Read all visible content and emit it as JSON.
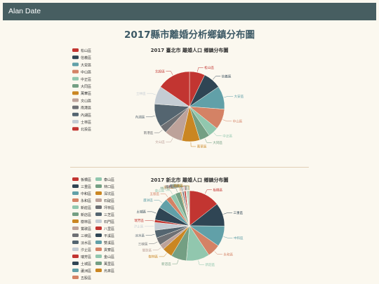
{
  "navbar": {
    "brand": "Alan Date"
  },
  "page": {
    "title": "2017縣市離婚分析鄉鎮分布圖"
  },
  "chart_data": [
    {
      "type": "pie",
      "title": "2017 臺北市 離婚人口 鄉鎮分布圖",
      "categories": [
        "松山區",
        "信義區",
        "大安區",
        "中山區",
        "中正區",
        "大同區",
        "萬華區",
        "文山區",
        "南港區",
        "內湖區",
        "士林區",
        "北投區"
      ],
      "values": [
        6,
        7,
        9,
        8,
        4,
        4,
        7,
        7,
        3,
        9,
        7,
        13
      ],
      "colors": [
        "#c23531",
        "#2f4554",
        "#61a0a8",
        "#d48265",
        "#91c7ae",
        "#749f83",
        "#ca8622",
        "#bda29a",
        "#6e7074",
        "#546570",
        "#c4ccd3",
        "#c23531"
      ],
      "legend": "left"
    },
    {
      "type": "pie",
      "title": "2017 新北市 離婚人口 鄉鎮分布圖",
      "categories": [
        "板橋區",
        "三重區",
        "中和區",
        "永和區",
        "新莊區",
        "新店區",
        "樹林區",
        "鶯歌區",
        "三峽區",
        "淡水區",
        "汐止區",
        "瑞芳區",
        "土城區",
        "蘆洲區",
        "五股區",
        "泰山區",
        "林口區",
        "深坑區",
        "石碇區",
        "坪林區",
        "三芝區",
        "石門區",
        "八里區",
        "平溪區",
        "雙溪區",
        "貢寮區",
        "金山區",
        "萬里區",
        "烏來區"
      ],
      "values": [
        12,
        9,
        8,
        5,
        9,
        6,
        4,
        2,
        3,
        3,
        3,
        1,
        5,
        4,
        2,
        2,
        2,
        0.4,
        0.3,
        0.2,
        0.5,
        0.2,
        0.6,
        0.1,
        0.2,
        0.2,
        0.4,
        0.4,
        0.1
      ],
      "colors": [
        "#c23531",
        "#2f4554",
        "#61a0a8",
        "#d48265",
        "#91c7ae",
        "#749f83",
        "#ca8622",
        "#bda29a",
        "#6e7074",
        "#546570",
        "#c4ccd3",
        "#c23531",
        "#2f4554",
        "#61a0a8",
        "#d48265",
        "#91c7ae",
        "#749f83",
        "#ca8622",
        "#bda29a",
        "#6e7074",
        "#546570",
        "#c4ccd3",
        "#c23531",
        "#2f4554",
        "#61a0a8",
        "#d48265",
        "#91c7ae",
        "#749f83",
        "#ca8622"
      ],
      "legend": "left"
    }
  ]
}
